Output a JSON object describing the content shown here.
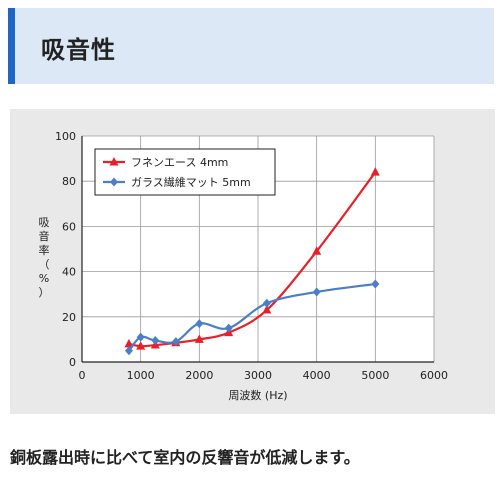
{
  "header": {
    "title": "吸音性"
  },
  "chart_data": {
    "type": "line",
    "title": "",
    "xlabel": "周波数 (Hz)",
    "ylabel": "吸音率（%）",
    "xlim": [
      0,
      6000
    ],
    "ylim": [
      0,
      100
    ],
    "xticks": [
      0,
      1000,
      2000,
      3000,
      4000,
      5000,
      6000
    ],
    "yticks": [
      0,
      20,
      40,
      60,
      80,
      100
    ],
    "grid": true,
    "legend_position": "top-left",
    "series": [
      {
        "name": "フネンエース 4mm",
        "color": "#e8202a",
        "marker": "triangle",
        "x": [
          800,
          1000,
          1250,
          1600,
          2000,
          2500,
          3150,
          4000,
          5000
        ],
        "y": [
          8,
          7,
          7.5,
          8.5,
          10,
          13,
          23,
          49,
          84
        ]
      },
      {
        "name": "ガラス繊維マット 5mm",
        "color": "#4a7ec8",
        "marker": "diamond",
        "x": [
          800,
          1000,
          1250,
          1600,
          2000,
          2500,
          3150,
          4000,
          5000
        ],
        "y": [
          5,
          11,
          9.5,
          9,
          17,
          15,
          26,
          31,
          34.5
        ]
      }
    ]
  },
  "caption": "銅板露出時に比べて室内の反響音が低減します。"
}
